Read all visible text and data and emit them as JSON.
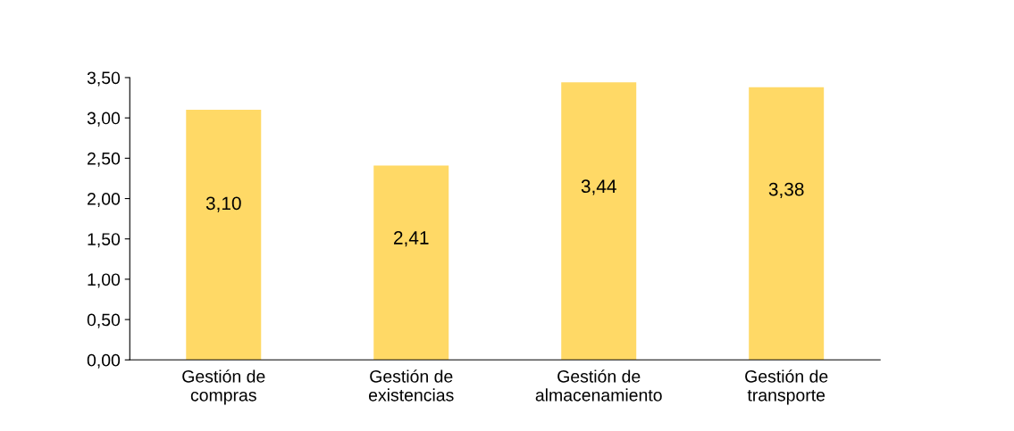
{
  "chart_data": {
    "type": "bar",
    "categories": [
      "Gestión de\ncompras",
      "Gestión de\nexistencias",
      "Gestión de\nalmacenamiento",
      "Gestión de\ntransporte"
    ],
    "values": [
      3.1,
      2.41,
      3.44,
      3.38
    ],
    "value_labels": [
      "3,10",
      "2,41",
      "3,44",
      "3,38"
    ],
    "color": "#ffd966",
    "ylim": [
      0,
      3.5
    ],
    "yticks": [
      {
        "value": 0,
        "label": "0,00"
      },
      {
        "value": 0.5,
        "label": "0,50"
      },
      {
        "value": 1,
        "label": "1,00"
      },
      {
        "value": 1.5,
        "label": "1,50"
      },
      {
        "value": 2,
        "label": "2,00"
      },
      {
        "value": 2.5,
        "label": "2,50"
      },
      {
        "value": 3,
        "label": "3,00"
      },
      {
        "value": 3.5,
        "label": "3,50"
      }
    ],
    "grid": false,
    "legend": false
  }
}
